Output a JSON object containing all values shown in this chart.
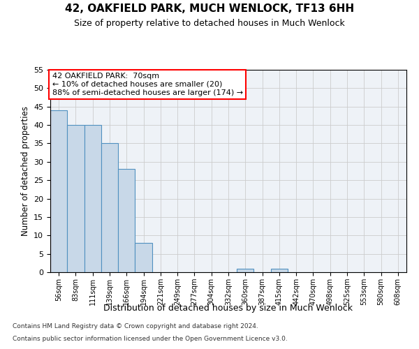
{
  "title": "42, OAKFIELD PARK, MUCH WENLOCK, TF13 6HH",
  "subtitle": "Size of property relative to detached houses in Much Wenlock",
  "xlabel": "Distribution of detached houses by size in Much Wenlock",
  "ylabel": "Number of detached properties",
  "categories": [
    "56sqm",
    "83sqm",
    "111sqm",
    "139sqm",
    "166sqm",
    "194sqm",
    "221sqm",
    "249sqm",
    "277sqm",
    "304sqm",
    "332sqm",
    "360sqm",
    "387sqm",
    "415sqm",
    "442sqm",
    "470sqm",
    "498sqm",
    "525sqm",
    "553sqm",
    "580sqm",
    "608sqm"
  ],
  "values": [
    44,
    40,
    40,
    35,
    28,
    8,
    0,
    0,
    0,
    0,
    0,
    1,
    0,
    1,
    0,
    0,
    0,
    0,
    0,
    0,
    0
  ],
  "bar_color": "#c8d8e8",
  "bar_edge_color": "#5090c0",
  "vline_color": "red",
  "annotation_box_text": "42 OAKFIELD PARK:  70sqm\n← 10% of detached houses are smaller (20)\n88% of semi-detached houses are larger (174) →",
  "ylim": [
    0,
    55
  ],
  "yticks": [
    0,
    5,
    10,
    15,
    20,
    25,
    30,
    35,
    40,
    45,
    50,
    55
  ],
  "grid_color": "#cccccc",
  "bg_color": "#eef2f7",
  "footer1": "Contains HM Land Registry data © Crown copyright and database right 2024.",
  "footer2": "Contains public sector information licensed under the Open Government Licence v3.0."
}
